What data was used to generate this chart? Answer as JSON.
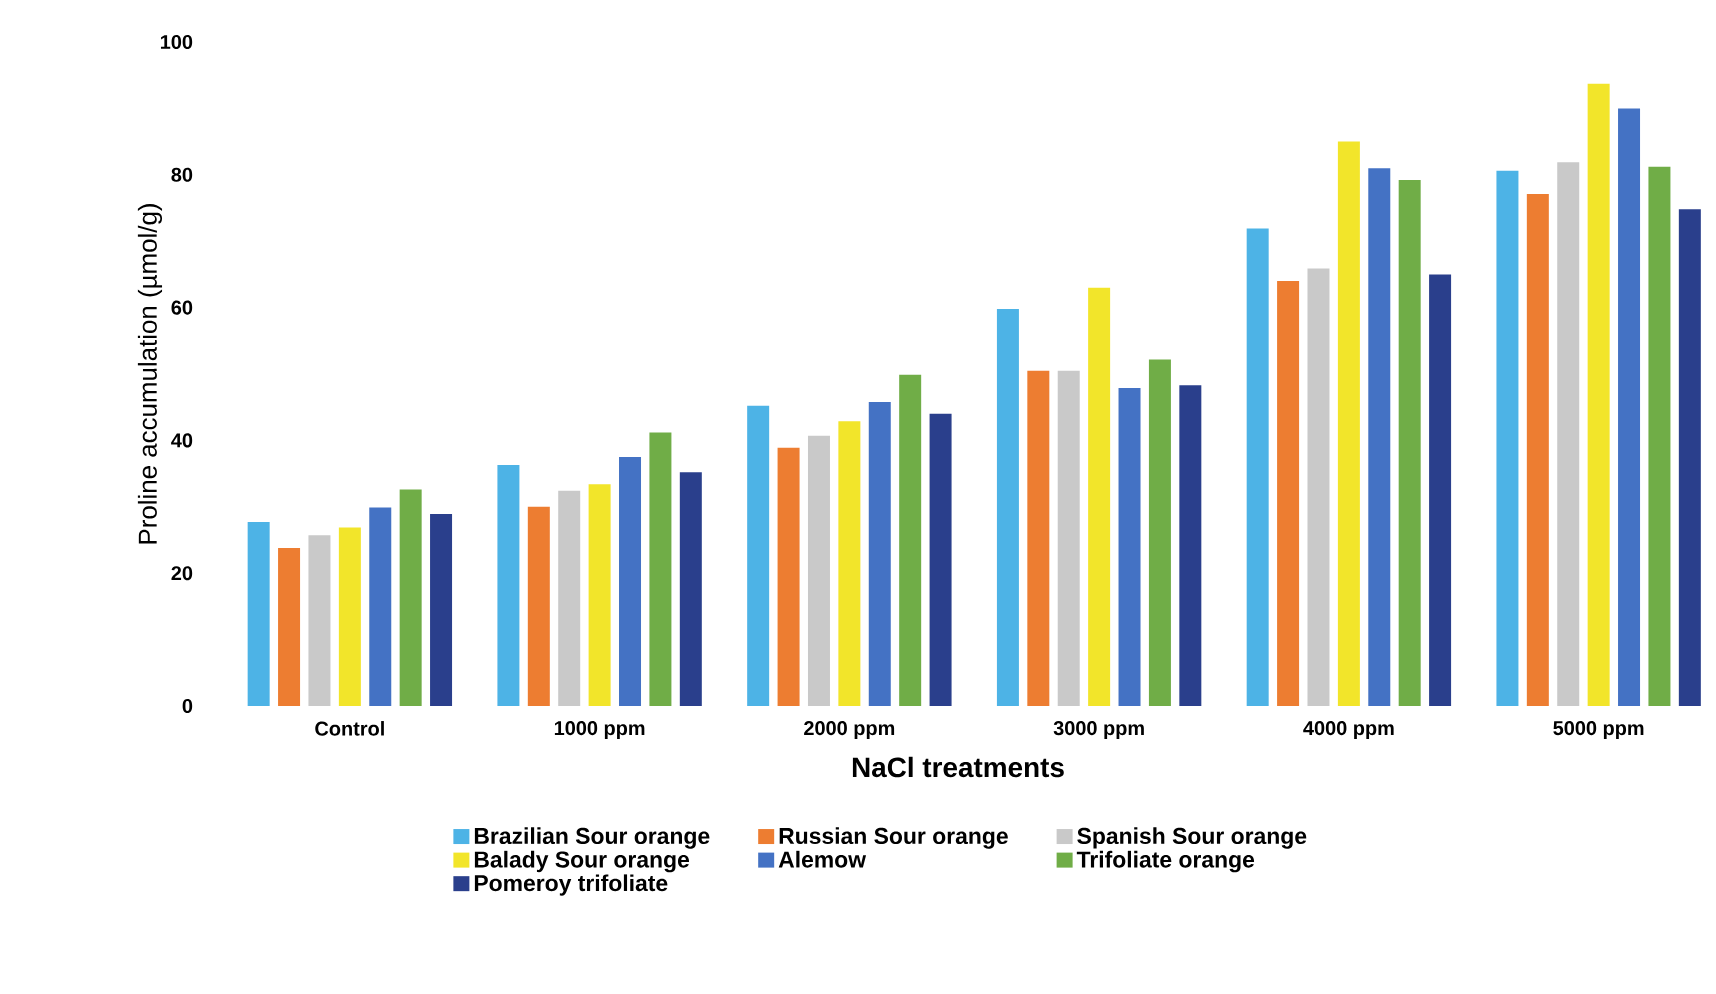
{
  "chart_data": {
    "type": "bar",
    "xlabel": "NaCl treatments",
    "ylabel": "Proline accumulation (µmol/g)",
    "categories": [
      "Control",
      "1000 ppm",
      "2000 ppm",
      "3000 ppm",
      "4000 ppm",
      "5000 ppm"
    ],
    "series": [
      {
        "name": "Brazilian Sour orange",
        "color": "#4db3e6",
        "values": [
          27.7,
          36.3,
          45.2,
          59.8,
          71.9,
          80.6
        ]
      },
      {
        "name": "Russian Sour orange",
        "color": "#ed7d31",
        "values": [
          23.8,
          30.0,
          38.9,
          50.5,
          64.0,
          77.1
        ]
      },
      {
        "name": "Spanish Sour orange",
        "color": "#c9c9c9",
        "values": [
          25.7,
          32.4,
          40.7,
          50.5,
          65.9,
          81.9
        ]
      },
      {
        "name": "Balady Sour orange",
        "color": "#f2e52a",
        "values": [
          26.9,
          33.4,
          42.9,
          63.0,
          85.0,
          93.7
        ]
      },
      {
        "name": "Alemow",
        "color": "#4472c4",
        "values": [
          29.9,
          37.5,
          45.8,
          47.9,
          81.0,
          90.0
        ]
      },
      {
        "name": "Trifoliate orange",
        "color": "#70ad47",
        "values": [
          32.6,
          41.2,
          49.9,
          52.2,
          79.2,
          81.2
        ]
      },
      {
        "name": "Pomeroy trifoliate",
        "color": "#2a3f8c",
        "values": [
          28.9,
          35.2,
          44.0,
          48.3,
          65.0,
          74.8
        ]
      }
    ],
    "ylim": [
      0,
      100
    ],
    "yticks": [
      0,
      20,
      40,
      60,
      80,
      100
    ],
    "grid": false,
    "legend": "bottom"
  }
}
